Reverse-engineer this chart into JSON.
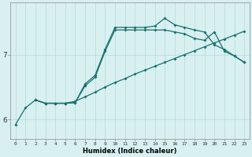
{
  "xlabel": "Humidex (Indice chaleur)",
  "bg_color": "#d8f0f0",
  "grid_color": "#b8d8d8",
  "line_color": "#1a7070",
  "xlim": [
    -0.5,
    23.5
  ],
  "ylim": [
    5.7,
    7.8
  ],
  "yticks": [
    6,
    7
  ],
  "xticks": [
    0,
    1,
    2,
    3,
    4,
    5,
    6,
    7,
    8,
    9,
    10,
    11,
    12,
    13,
    14,
    15,
    16,
    17,
    18,
    19,
    20,
    21,
    22,
    23
  ],
  "line1_x": [
    0,
    1,
    2,
    3,
    4,
    5,
    6,
    7,
    8,
    9,
    10,
    11,
    12,
    13,
    14,
    15,
    16,
    17,
    18,
    19,
    20,
    21,
    22,
    23
  ],
  "line1_y": [
    5.92,
    6.18,
    6.3,
    6.25,
    6.25,
    6.25,
    6.28,
    6.35,
    6.42,
    6.5,
    6.57,
    6.63,
    6.7,
    6.76,
    6.82,
    6.88,
    6.94,
    7.0,
    7.06,
    7.12,
    7.18,
    7.24,
    7.3,
    7.36
  ],
  "line2_x": [
    2,
    3,
    4,
    5,
    6,
    7,
    8,
    9,
    10,
    11,
    12,
    13,
    14,
    15,
    16,
    17,
    18,
    19,
    20,
    21,
    22,
    23
  ],
  "line2_y": [
    6.3,
    6.25,
    6.25,
    6.25,
    6.26,
    6.52,
    6.65,
    7.05,
    7.38,
    7.38,
    7.38,
    7.38,
    7.38,
    7.38,
    7.35,
    7.32,
    7.25,
    7.22,
    7.35,
    7.05,
    6.98,
    6.88
  ],
  "line3_x": [
    2,
    3,
    4,
    5,
    6,
    7,
    8,
    9,
    10,
    11,
    12,
    13,
    14,
    15,
    16,
    17,
    18,
    19,
    20,
    21,
    22,
    23
  ],
  "line3_y": [
    6.3,
    6.25,
    6.25,
    6.25,
    6.26,
    6.55,
    6.68,
    7.08,
    7.42,
    7.42,
    7.42,
    7.42,
    7.44,
    7.56,
    7.46,
    7.42,
    7.38,
    7.35,
    7.15,
    7.08,
    6.98,
    6.88
  ]
}
